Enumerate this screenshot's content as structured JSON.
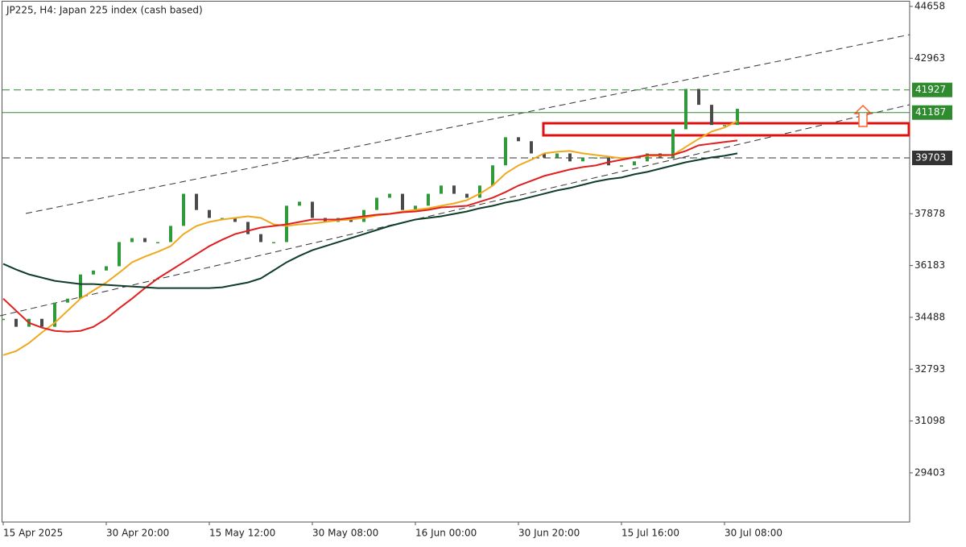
{
  "chart_data": {
    "type": "candlestick",
    "title": "JP225, H4:  Japan 225 index (cash based)",
    "categories": [
      "15 Apr 2025",
      null,
      null,
      null,
      null,
      null,
      null,
      null,
      "30 Apr 20:00",
      null,
      null,
      null,
      null,
      null,
      null,
      null,
      "15 May 12:00",
      null,
      null,
      null,
      null,
      null,
      null,
      null,
      "30 May 08:00",
      null,
      null,
      null,
      null,
      null,
      null,
      null,
      "16 Jun 00:00",
      null,
      null,
      null,
      null,
      null,
      null,
      null,
      "30 Jun 20:00",
      null,
      null,
      null,
      null,
      null,
      null,
      null,
      "15 Jul 16:00",
      null,
      null,
      null,
      null,
      null,
      null,
      null,
      "30 Jul 08:00",
      null
    ],
    "ylim": [
      27740,
      44869
    ],
    "yticks": [
      44658,
      42963,
      37878,
      36183,
      34488,
      32793,
      31098,
      29403
    ],
    "up_color": "#2f9a3a",
    "down_color": "#4a4a4a",
    "series": [
      {
        "type": "candlestick",
        "values": [
          34440,
          34180,
          34440,
          34180,
          34970,
          35100,
          35890,
          36020,
          36160,
          36950,
          37080,
          36950,
          36950,
          37480,
          38530,
          38000,
          37740,
          37740,
          37610,
          37210,
          36950,
          36950,
          38140,
          38270,
          37740,
          37610,
          37740,
          37610,
          38000,
          38400,
          38530,
          38000,
          38140,
          38530,
          38800,
          38530,
          38400,
          38800,
          39460,
          40380,
          40250,
          39850,
          39720,
          39850,
          39590,
          39720,
          39720,
          39460,
          39460,
          39590,
          39850,
          39720,
          40640,
          41960,
          41440,
          40780,
          40780,
          41310
        ]
      },
      {
        "type": "line",
        "color": "#f0a81e",
        "values": [
          33253,
          33385,
          33649,
          33992,
          34309,
          34705,
          35101,
          35365,
          35629,
          35946,
          36289,
          36474,
          36632,
          36817,
          37213,
          37477,
          37609,
          37688,
          37741,
          37794,
          37741,
          37530,
          37477,
          37530,
          37556,
          37609,
          37662,
          37688,
          37741,
          37820,
          37873,
          37952,
          38005,
          38058,
          38137,
          38216,
          38322,
          38533,
          38797,
          39193,
          39457,
          39642,
          39853,
          39906,
          39932,
          39853,
          39800,
          39747,
          39694,
          39721,
          39774,
          39774,
          39800,
          40064,
          40328,
          40566,
          40698,
          40909
        ]
      },
      {
        "type": "line",
        "color": "#e02020",
        "values": [
          35101,
          34705,
          34309,
          34151,
          34045,
          34019,
          34045,
          34177,
          34441,
          34784,
          35101,
          35444,
          35761,
          36025,
          36289,
          36553,
          36817,
          37028,
          37213,
          37319,
          37424,
          37477,
          37530,
          37609,
          37688,
          37688,
          37688,
          37741,
          37794,
          37847,
          37873,
          37926,
          37952,
          38005,
          38084,
          38111,
          38137,
          38269,
          38401,
          38586,
          38797,
          38956,
          39114,
          39219,
          39325,
          39404,
          39457,
          39562,
          39641,
          39721,
          39800,
          39800,
          39800,
          39932,
          40117,
          40170,
          40223,
          40275
        ]
      },
      {
        "type": "line",
        "color": "#0f3d2a",
        "values": [
          36236,
          36052,
          35893,
          35788,
          35682,
          35629,
          35576,
          35576,
          35550,
          35523,
          35497,
          35471,
          35444,
          35444,
          35444,
          35444,
          35444,
          35471,
          35550,
          35629,
          35761,
          36025,
          36289,
          36500,
          36685,
          36817,
          36949,
          37081,
          37213,
          37345,
          37477,
          37583,
          37688,
          37741,
          37794,
          37873,
          37952,
          38058,
          38137,
          38243,
          38322,
          38428,
          38533,
          38639,
          38718,
          38824,
          38929,
          39008,
          39061,
          39167,
          39246,
          39352,
          39457,
          39562,
          39641,
          39721,
          39774,
          39853
        ]
      }
    ],
    "levels": [
      {
        "value": 41927,
        "color": "#2e8b2e",
        "style": "dashed"
      },
      {
        "value": 41187,
        "color": "#2e8b2e",
        "style": "solid"
      },
      {
        "value": 39703,
        "color": "#333333",
        "style": "dashed"
      }
    ]
  }
}
